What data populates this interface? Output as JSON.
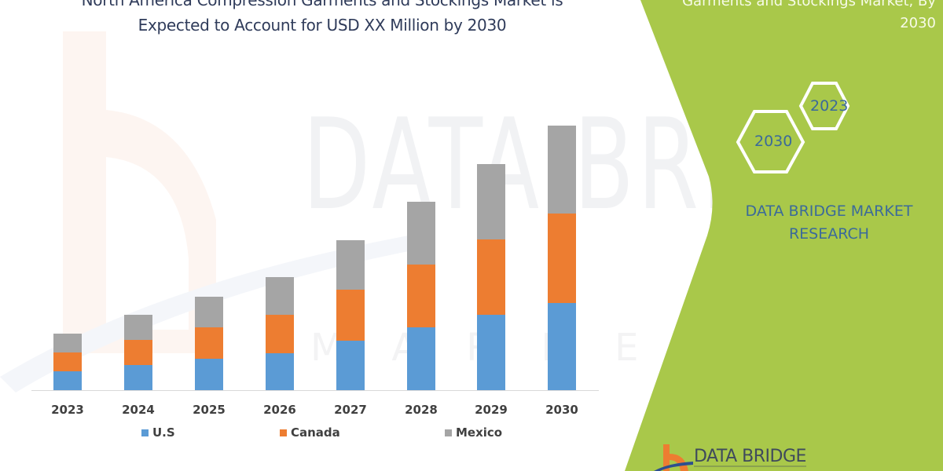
{
  "title": {
    "line1": "North America Compression Garments and Stockings Market is",
    "line2": "Expected to Account for USD XX Million by 2030"
  },
  "side_panel": {
    "title_line1": "Garments and Stockings Market, By",
    "title_line2": "2030",
    "hex_labels": [
      "2023",
      "2030"
    ],
    "brand_line1": "DATA BRIDGE MARKET",
    "brand_line2": "RESEARCH",
    "logo_text": "DATA BRIDGE",
    "background_color": "#A9C84A"
  },
  "watermark": {
    "main": "DATA BRIDGE",
    "sub": "MARKET RESEARCH"
  },
  "colors": {
    "us": "#5B9BD5",
    "canada": "#ED7D31",
    "mexico": "#A5A5A5",
    "title": "#2F3B5A",
    "panel_green": "#A9C84A",
    "brand_blue": "#3B6A9A"
  },
  "chart_data": {
    "type": "bar",
    "stacked": true,
    "title": "North America Compression Garments and Stockings Market is Expected to Account for USD XX Million by 2030",
    "xlabel": "",
    "ylabel": "",
    "y_axis_visible": false,
    "grid": false,
    "legend_position": "bottom",
    "value_units": "relative (no y-axis shown; read from bar heights)",
    "categories": [
      "2023",
      "2024",
      "2025",
      "2026",
      "2027",
      "2028",
      "2029",
      "2030"
    ],
    "series": [
      {
        "name": "U.S",
        "color": "#5B9BD5",
        "values": [
          24,
          32,
          40,
          47,
          63,
          80,
          96,
          111
        ]
      },
      {
        "name": "Canada",
        "color": "#ED7D31",
        "values": [
          24,
          32,
          40,
          49,
          65,
          80,
          96,
          114
        ]
      },
      {
        "name": "Mexico",
        "color": "#A5A5A5",
        "values": [
          24,
          32,
          39,
          48,
          63,
          80,
          96,
          112
        ]
      }
    ],
    "totals": [
      72,
      96,
      119,
      144,
      191,
      240,
      288,
      337
    ],
    "ylim": [
      0,
      350
    ]
  },
  "legend": {
    "items": [
      {
        "label": "U.S"
      },
      {
        "label": "Canada"
      },
      {
        "label": "Mexico"
      }
    ]
  }
}
